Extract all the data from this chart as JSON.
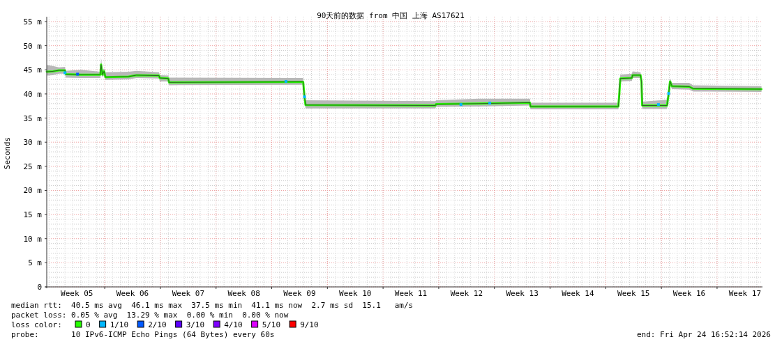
{
  "chart_data": {
    "type": "line",
    "title": "90天前的数据 from 中国 上海 AS17621",
    "ylabel": "Seconds",
    "xlim": [
      "2026-01-24T17:00",
      "2026-04-24T17:00"
    ],
    "xticks": [
      {
        "value": "2026-01-28T12:00",
        "label": "Week 05"
      },
      {
        "value": "2026-02-01T00:00",
        "label": null
      },
      {
        "value": "2026-02-04T12:00",
        "label": "Week 06"
      },
      {
        "value": "2026-02-08T00:00",
        "label": null
      },
      {
        "value": "2026-02-11T12:00",
        "label": "Week 07"
      },
      {
        "value": "2026-02-15T00:00",
        "label": null
      },
      {
        "value": "2026-02-18T12:00",
        "label": "Week 08"
      },
      {
        "value": "2026-02-22T00:00",
        "label": null
      },
      {
        "value": "2026-02-25T12:00",
        "label": "Week 09"
      },
      {
        "value": "2026-03-01T00:00",
        "label": null
      },
      {
        "value": "2026-03-04T12:00",
        "label": "Week 10"
      },
      {
        "value": "2026-03-08T00:00",
        "label": null
      },
      {
        "value": "2026-03-11T12:00",
        "label": "Week 11"
      },
      {
        "value": "2026-03-15T00:00",
        "label": null
      },
      {
        "value": "2026-03-18T12:00",
        "label": "Week 12"
      },
      {
        "value": "2026-03-22T00:00",
        "label": null
      },
      {
        "value": "2026-03-25T12:00",
        "label": "Week 13"
      },
      {
        "value": "2026-03-29T00:00",
        "label": null
      },
      {
        "value": "2026-04-01T12:00",
        "label": "Week 14"
      },
      {
        "value": "2026-04-05T00:00",
        "label": null
      },
      {
        "value": "2026-04-08T12:00",
        "label": "Week 15"
      },
      {
        "value": "2026-04-12T00:00",
        "label": null
      },
      {
        "value": "2026-04-15T12:00",
        "label": "Week 16"
      },
      {
        "value": "2026-04-19T00:00",
        "label": null
      },
      {
        "value": "2026-04-22T12:00",
        "label": "Week 17"
      }
    ],
    "ylim": [
      0,
      56
    ],
    "yticks": [
      0,
      {
        "value": 5,
        "label": "5 m"
      },
      {
        "value": 10,
        "label": "10 m"
      },
      {
        "value": 15,
        "label": "15 m"
      },
      {
        "value": 20,
        "label": "20 m"
      },
      {
        "value": 25,
        "label": "25 m"
      },
      {
        "value": 30,
        "label": "30 m"
      },
      {
        "value": 35,
        "label": "35 m"
      },
      {
        "value": 40,
        "label": "40 m"
      },
      {
        "value": 45,
        "label": "45 m"
      },
      {
        "value": 50,
        "label": "50 m"
      },
      {
        "value": 55,
        "label": "55 m"
      }
    ],
    "grid": true,
    "legend": "bottom",
    "legend_title": "loss color:",
    "series": [
      {
        "name": "0",
        "type": "line",
        "color": "#26ff00",
        "x": [
          "2026-01-24T17:00",
          "2026-01-25T12:00",
          "2026-01-26T06:00",
          "2026-01-27T00:00",
          "2026-01-27T02:00",
          "2026-01-29T00:00",
          "2026-01-31T11:00",
          "2026-01-31T13:00",
          "2026-01-31T17:00",
          "2026-01-31T22:00",
          "2026-02-01T02:00",
          "2026-02-04T00:00",
          "2026-02-05T00:00",
          "2026-02-07T20:00",
          "2026-02-07T22:00",
          "2026-02-09T00:00",
          "2026-02-09T02:00",
          "2026-02-25T23:00",
          "2026-02-26T03:00",
          "2026-02-26T06:00",
          "2026-03-14T14:00",
          "2026-03-14T16:00",
          "2026-03-20T00:00",
          "2026-03-26T11:00",
          "2026-03-26T13:00",
          "2026-04-06T14:00",
          "2026-04-06T17:00",
          "2026-04-06T20:00",
          "2026-04-08T07:00",
          "2026-04-08T09:00",
          "2026-04-09T09:00",
          "2026-04-09T12:00",
          "2026-04-09T14:00",
          "2026-04-12T17:00",
          "2026-04-12T22:00",
          "2026-04-13T02:00",
          "2026-04-13T08:00",
          "2026-04-15T12:00",
          "2026-04-16T00:00",
          "2026-04-24T14:00"
        ],
        "values": [
          44.6,
          44.7,
          44.9,
          44.9,
          44.1,
          44.0,
          44.0,
          46.1,
          44.0,
          44.7,
          43.5,
          43.6,
          43.9,
          43.8,
          43.3,
          43.2,
          42.4,
          42.5,
          39.4,
          37.7,
          37.6,
          37.9,
          38.0,
          38.2,
          37.4,
          37.4,
          40.0,
          43.2,
          43.3,
          43.9,
          43.9,
          42.5,
          37.6,
          37.6,
          40.1,
          42.6,
          41.6,
          41.5,
          41.1,
          41.0
        ],
        "lower": [
          43.8,
          43.9,
          44.2,
          44.2,
          43.4,
          43.3,
          43.3,
          44.5,
          43.5,
          43.8,
          42.9,
          43.0,
          43.3,
          43.2,
          42.6,
          42.6,
          41.8,
          41.9,
          38.5,
          37.0,
          37.0,
          37.3,
          37.4,
          37.6,
          36.8,
          36.8,
          39.0,
          42.6,
          42.7,
          43.3,
          43.3,
          41.8,
          36.9,
          36.9,
          39.2,
          41.8,
          41.0,
          40.9,
          40.5,
          40.4
        ],
        "upper": [
          46.0,
          45.8,
          45.5,
          45.6,
          44.8,
          45.0,
          44.6,
          47.5,
          45.0,
          45.3,
          44.5,
          44.6,
          44.8,
          44.5,
          43.9,
          43.8,
          43.4,
          43.3,
          40.5,
          38.7,
          38.5,
          38.7,
          39.0,
          39.0,
          38.2,
          38.2,
          41.0,
          44.0,
          44.2,
          44.7,
          44.5,
          43.2,
          38.4,
          38.8,
          41.0,
          43.2,
          42.3,
          42.3,
          41.8,
          41.6
        ]
      },
      {
        "name": "1/10",
        "type": "scatter",
        "color": "#00b8ff",
        "x": [
          "2026-01-27T00:00",
          "2026-02-23T19:00",
          "2026-02-26T03:00",
          "2026-03-17T19:00",
          "2026-03-21T10:00",
          "2026-04-11T15:00",
          "2026-04-12T22:00"
        ],
        "values": [
          44.4,
          42.6,
          39.4,
          37.8,
          38.1,
          37.8,
          40.1
        ]
      },
      {
        "name": "2/10",
        "type": "scatter",
        "color": "#0059ff",
        "x": [
          "2026-01-28T14:00"
        ],
        "values": [
          44.1
        ]
      },
      {
        "name": "3/10",
        "color": "#5e00ff"
      },
      {
        "name": "4/10",
        "color": "#7e00ff"
      },
      {
        "name": "5/10",
        "color": "#dd00ff"
      },
      {
        "name": "9/10",
        "color": "#ff0000"
      }
    ],
    "annotations": [
      "median rtt:  40.5 ms avg  46.1 ms max  37.5 ms min  41.1 ms now  2.7 ms sd  15.1   am/s",
      "packet loss: 0.05 % avg  13.29 % max  0.00 % min  0.00 % now",
      "probe:       10 IPv6-ICMP Echo Pings (64 Bytes) every 60s",
      "end: Fri Apr 24 16:52:14 2026"
    ]
  }
}
